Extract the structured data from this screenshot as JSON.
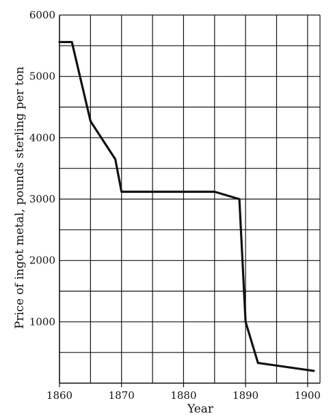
{
  "chart_data": {
    "type": "line",
    "title": "",
    "xlabel": "Year",
    "ylabel": "Price of ingot metal, pounds sterling per ton",
    "xlim": [
      1860,
      1902
    ],
    "ylim": [
      0,
      6000
    ],
    "x_ticks": [
      1860,
      1870,
      1880,
      1890,
      1900
    ],
    "x_tick_labels": [
      "1860",
      "1870",
      "1880",
      "1890",
      "1900"
    ],
    "y_ticks": [
      1000,
      2000,
      3000,
      4000,
      5000,
      6000
    ],
    "y_tick_labels": [
      "1000",
      "2000",
      "3000",
      "4000",
      "5000",
      "6000"
    ],
    "x_grid_step": 5,
    "y_grid_step": 500,
    "grid": true,
    "series": [
      {
        "x": [
          1860,
          1862,
          1865,
          1869,
          1870,
          1885,
          1889,
          1890,
          1892,
          1901
        ],
        "y": [
          5560,
          5560,
          4270,
          3650,
          3120,
          3120,
          3000,
          1000,
          330,
          200
        ],
        "color": "#111111"
      }
    ]
  }
}
